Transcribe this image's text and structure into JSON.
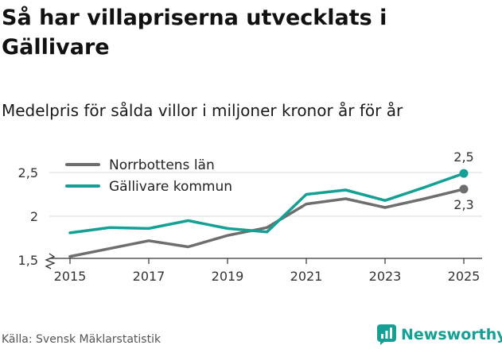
{
  "title": "Så har villapriserna utvecklats i Gällivare",
  "subtitle": "Medelpris för sålda villor i miljoner kronor år för år",
  "source": "Källa: Svensk Mäklarstatistik",
  "brand": "Newsworthy",
  "chart_data": {
    "type": "line",
    "x": [
      2015,
      2016,
      2017,
      2018,
      2019,
      2020,
      2021,
      2022,
      2023,
      2024,
      2025
    ],
    "x_ticks": [
      "2015",
      "2017",
      "2019",
      "2021",
      "2023",
      "2025"
    ],
    "y_ticks": [
      "1,5",
      "2",
      "2,5"
    ],
    "ylim": [
      1.4,
      2.65
    ],
    "series": [
      {
        "name": "Norrbottens län",
        "color": "#6e6e6e",
        "values": [
          1.54,
          1.63,
          1.72,
          1.65,
          1.78,
          1.87,
          2.14,
          2.2,
          2.1,
          2.2,
          2.31
        ],
        "end_label": "2,3"
      },
      {
        "name": "Gällivare kommun",
        "color": "#14a094",
        "values": [
          1.81,
          1.87,
          1.86,
          1.95,
          1.86,
          1.82,
          2.25,
          2.3,
          2.18,
          2.33,
          2.49
        ],
        "end_label": "2,5"
      }
    ],
    "legend_position": "top-left",
    "axis_break": true
  }
}
